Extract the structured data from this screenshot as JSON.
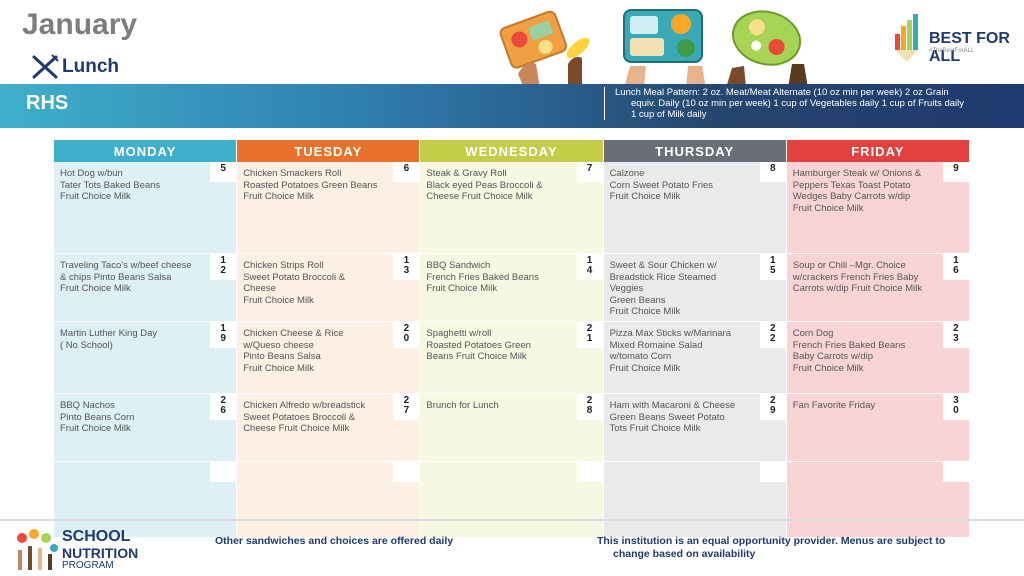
{
  "header": {
    "month": "January",
    "meal": "Lunch",
    "school": "RHS",
    "pattern_lines": [
      "Lunch Meal Pattern: 2 oz. Meat/Meat Alternate (10 oz min per week) 2 oz Grain",
      "equiv. Daily (10 oz min per week) 1 cup of Vegetables daily 1 cup of Fruits daily",
      "1 cup of Milk daily"
    ],
    "logo_text": "BEST FOR ALL",
    "logo_tag": "#TheBestForALL"
  },
  "colors": {
    "monday": "#3fb0cb",
    "tuesday": "#e8712b",
    "wednesday": "#c4cd47",
    "thursday": "#6a6f77",
    "friday": "#e34040"
  },
  "days": [
    "MONDAY",
    "TUESDAY",
    "WEDNESDAY",
    "THURSDAY",
    "FRIDAY"
  ],
  "weeks": [
    [
      {
        "date": "5",
        "lines": [
          "Hot Dog w/bun",
          "Tater Tots Baked  Beans",
          "Fruit Choice Milk"
        ]
      },
      {
        "date": "6",
        "lines": [
          "Chicken Smackers Roll",
          "Roasted Potatoes Green Beans",
          "Fruit Choice Milk"
        ]
      },
      {
        "date": "7",
        "lines": [
          "Steak & Gravy Roll",
          "Black eyed Peas Broccoli &",
          "Cheese Fruit Choice Milk"
        ]
      },
      {
        "date": "8",
        "lines": [
          "Calzone",
          "Corn Sweet Potato Fries",
          "Fruit Choice Milk"
        ]
      },
      {
        "date": "9",
        "lines": [
          "Hamburger Steak w/ Onions &",
          "Peppers Texas Toast  Potato",
          "Wedges Baby Carrots w/dip",
          "Fruit Choice Milk"
        ]
      }
    ],
    [
      {
        "date": "12",
        "lines": [
          "Traveling Taco's w/beef cheese",
          "& chips Pinto Beans Salsa",
          "Fruit Choice Milk"
        ]
      },
      {
        "date": "13",
        "lines": [
          "Chicken Strips Roll",
          "Sweet Potato  Broccoli &",
          "Cheese",
          "Fruit Choice Milk"
        ]
      },
      {
        "date": "14",
        "lines": [
          "BBQ Sandwich",
          "French Fries Baked Beans",
          "Fruit Choice Milk"
        ]
      },
      {
        "date": "15",
        "lines": [
          "Sweet & Sour Chicken w/",
          "Breadstick Rice  Steamed",
          "Veggies",
          "Green Beans",
          "Fruit Choice Milk"
        ]
      },
      {
        "date": "16",
        "lines": [
          "Soup or Chili –Mgr. Choice",
          "w/crackers French Fries Baby",
          "Carrots w/dip Fruit Choice Milk"
        ]
      }
    ],
    [
      {
        "date": "19",
        "lines": [
          "Martin Luther King Day",
          "( No School)"
        ]
      },
      {
        "date": "20",
        "lines": [
          "Chicken Cheese & Rice",
          "w/Queso cheese",
          "Pinto Beans Salsa",
          "Fruit Choice Milk"
        ]
      },
      {
        "date": "21",
        "lines": [
          "Spaghetti w/roll",
          "Roasted Potatoes Green",
          "Beans Fruit Choice Milk"
        ]
      },
      {
        "date": "22",
        "lines": [
          "Pizza Max Sticks w/Marinara",
          "Mixed Romaine Salad",
          "w/tomato Corn",
          "Fruit Choice Milk"
        ]
      },
      {
        "date": "23",
        "lines": [
          "Corn Dog",
          "French Fries Baked Beans",
          "Baby Carrots w/dip",
          "Fruit Choice Milk"
        ]
      }
    ],
    [
      {
        "date": "26",
        "lines": [
          "BBQ Nachos",
          "Pinto Beans  Corn",
          "Fruit Choice Milk"
        ]
      },
      {
        "date": "27",
        "lines": [
          "Chicken Alfredo w/breadstick",
          "Sweet Potatoes Broccoli &",
          "Cheese Fruit Choice Milk"
        ]
      },
      {
        "date": "28",
        "lines": [
          "Brunch for Lunch"
        ]
      },
      {
        "date": "29",
        "lines": [
          "Ham with Macaroni & Cheese",
          "Green Beans Sweet Potato",
          "Tots Fruit Choice Milk"
        ]
      },
      {
        "date": "30",
        "lines": [
          "Fan Favorite Friday"
        ]
      }
    ],
    [
      {
        "date": "",
        "lines": []
      },
      {
        "date": "",
        "lines": []
      },
      {
        "date": "",
        "lines": []
      },
      {
        "date": "",
        "lines": []
      },
      {
        "date": "",
        "lines": []
      }
    ]
  ],
  "footer": {
    "snp_line1": "SCHOOL",
    "snp_line2": "NUTRITION",
    "snp_line3": "PROGRAM",
    "note_left": "Other sandwiches and choices are offered daily",
    "note_right_lines": [
      "This institution is an equal opportunity provider. Menus are subject to",
      "change based on availability"
    ]
  }
}
